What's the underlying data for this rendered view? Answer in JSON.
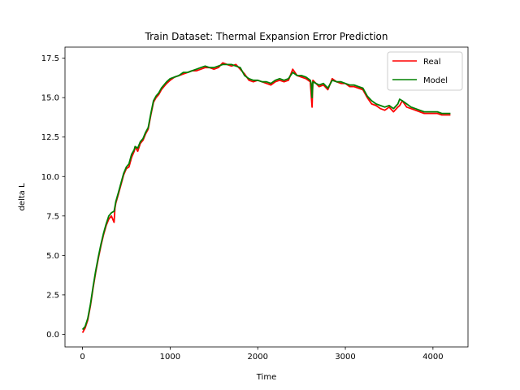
{
  "chart_data": {
    "type": "line",
    "title": "Train Dataset: Thermal Expansion Error Prediction",
    "xlabel": "Time",
    "ylabel": "delta L",
    "xlim": [
      -200,
      4400
    ],
    "ylim": [
      -0.8,
      18.2
    ],
    "xticks": [
      0,
      1000,
      2000,
      3000,
      4000
    ],
    "yticks": [
      0.0,
      2.5,
      5.0,
      7.5,
      10.0,
      12.5,
      15.0,
      17.5
    ],
    "grid": false,
    "legend": "top-right",
    "series": [
      {
        "name": "Real",
        "color": "#ff0000",
        "x": [
          0,
          30,
          60,
          90,
          120,
          150,
          180,
          210,
          240,
          270,
          300,
          330,
          360,
          370,
          380,
          410,
          440,
          470,
          500,
          530,
          560,
          590,
          600,
          630,
          660,
          690,
          720,
          750,
          780,
          810,
          840,
          870,
          900,
          930,
          960,
          1000,
          1050,
          1100,
          1150,
          1200,
          1250,
          1300,
          1350,
          1400,
          1450,
          1500,
          1550,
          1600,
          1650,
          1700,
          1750,
          1800,
          1850,
          1900,
          1950,
          2000,
          2050,
          2100,
          2150,
          2200,
          2250,
          2300,
          2350,
          2400,
          2450,
          2500,
          2550,
          2600,
          2610,
          2620,
          2630,
          2700,
          2750,
          2800,
          2850,
          2900,
          2950,
          3000,
          3050,
          3100,
          3150,
          3200,
          3250,
          3300,
          3350,
          3400,
          3450,
          3500,
          3550,
          3600,
          3620,
          3650,
          3700,
          3750,
          3800,
          3850,
          3900,
          3950,
          4000,
          4050,
          4100,
          4150,
          4200
        ],
        "y": [
          0.1,
          0.4,
          0.9,
          1.8,
          2.9,
          3.9,
          4.8,
          5.6,
          6.3,
          6.9,
          7.3,
          7.5,
          7.1,
          8.0,
          8.3,
          8.9,
          9.5,
          10.1,
          10.5,
          10.6,
          11.2,
          11.6,
          11.9,
          11.6,
          12.1,
          12.3,
          12.7,
          13.0,
          13.9,
          14.7,
          15.0,
          15.2,
          15.5,
          15.7,
          15.9,
          16.1,
          16.3,
          16.4,
          16.5,
          16.6,
          16.7,
          16.7,
          16.8,
          16.9,
          16.9,
          16.8,
          16.9,
          17.2,
          17.1,
          17.0,
          17.1,
          16.8,
          16.5,
          16.1,
          16.0,
          16.1,
          16.0,
          15.9,
          15.8,
          16.0,
          16.1,
          16.0,
          16.1,
          16.8,
          16.4,
          16.3,
          16.2,
          16.0,
          15.2,
          14.4,
          16.1,
          15.7,
          15.8,
          15.5,
          16.2,
          16.0,
          15.9,
          15.9,
          15.7,
          15.7,
          15.6,
          15.5,
          15.0,
          14.6,
          14.5,
          14.3,
          14.2,
          14.4,
          14.1,
          14.4,
          14.5,
          14.8,
          14.4,
          14.3,
          14.2,
          14.1,
          14.0,
          14.0,
          14.0,
          14.0,
          13.9,
          13.9,
          13.9
        ]
      },
      {
        "name": "Model",
        "color": "#008000",
        "x": [
          0,
          30,
          60,
          90,
          120,
          150,
          180,
          210,
          240,
          270,
          300,
          330,
          360,
          370,
          380,
          410,
          440,
          470,
          500,
          530,
          560,
          590,
          600,
          630,
          660,
          690,
          720,
          750,
          780,
          810,
          840,
          870,
          900,
          930,
          960,
          1000,
          1050,
          1100,
          1150,
          1200,
          1250,
          1300,
          1350,
          1400,
          1450,
          1500,
          1550,
          1600,
          1650,
          1700,
          1750,
          1800,
          1850,
          1900,
          1950,
          2000,
          2050,
          2100,
          2150,
          2200,
          2250,
          2300,
          2350,
          2400,
          2450,
          2500,
          2550,
          2600,
          2610,
          2620,
          2630,
          2700,
          2750,
          2800,
          2850,
          2900,
          2950,
          3000,
          3050,
          3100,
          3150,
          3200,
          3250,
          3300,
          3350,
          3400,
          3450,
          3500,
          3550,
          3600,
          3620,
          3650,
          3700,
          3750,
          3800,
          3850,
          3900,
          3950,
          4000,
          4050,
          4100,
          4150,
          4200
        ],
        "y": [
          0.3,
          0.5,
          1.0,
          1.9,
          3.0,
          4.0,
          4.9,
          5.7,
          6.4,
          7.0,
          7.5,
          7.7,
          7.8,
          8.1,
          8.4,
          9.0,
          9.6,
          10.2,
          10.6,
          10.8,
          11.4,
          11.7,
          11.9,
          11.8,
          12.2,
          12.4,
          12.8,
          13.1,
          14.0,
          14.8,
          15.1,
          15.3,
          15.6,
          15.8,
          16.0,
          16.2,
          16.3,
          16.4,
          16.6,
          16.6,
          16.7,
          16.8,
          16.9,
          17.0,
          16.9,
          16.9,
          17.0,
          17.1,
          17.1,
          17.1,
          17.0,
          16.9,
          16.4,
          16.2,
          16.1,
          16.1,
          16.0,
          16.0,
          15.9,
          16.1,
          16.2,
          16.1,
          16.2,
          16.6,
          16.4,
          16.4,
          16.3,
          16.1,
          15.9,
          15.0,
          16.0,
          15.8,
          15.9,
          15.6,
          16.1,
          16.0,
          16.0,
          15.9,
          15.8,
          15.8,
          15.7,
          15.6,
          15.1,
          14.8,
          14.6,
          14.5,
          14.4,
          14.5,
          14.3,
          14.6,
          14.9,
          14.8,
          14.6,
          14.4,
          14.3,
          14.2,
          14.1,
          14.1,
          14.1,
          14.1,
          14.0,
          14.0,
          14.0
        ]
      }
    ]
  }
}
